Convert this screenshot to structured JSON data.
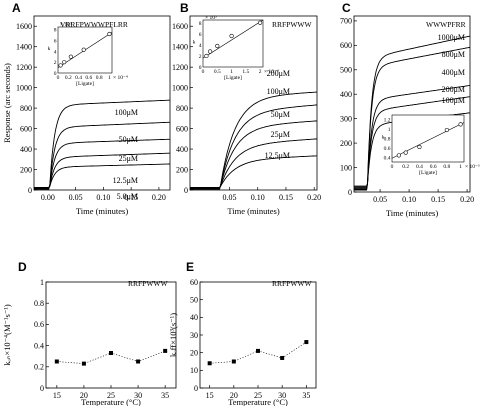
{
  "chart_data": [
    {
      "id": "A",
      "type": "line",
      "panel_label": "A",
      "sequence": "VRRFPWWWPFLRR",
      "ylabel": "Response (arc seconds)",
      "xlabel": "Time (minutes)",
      "xlim": [
        -0.025,
        0.22
      ],
      "ylim": [
        0,
        1700
      ],
      "xticks": [
        "0.00",
        "0.05",
        "0.10",
        "0.15",
        "0.20"
      ],
      "xtick_values": [
        0.0,
        0.05,
        0.1,
        0.15,
        0.2
      ],
      "yticks": [
        "0",
        "200",
        "400",
        "600",
        "800",
        "1000",
        "1200",
        "1400",
        "1600"
      ],
      "ytick_values": [
        0,
        200,
        400,
        600,
        800,
        1000,
        1200,
        1400,
        1600
      ],
      "inj_start": 0.003,
      "rise_tau": 0.009,
      "series": [
        {
          "name": "100μM",
          "plateau": 820,
          "final": 870
        },
        {
          "name": "50μM",
          "plateau": 600,
          "final": 650
        },
        {
          "name": "25μM",
          "plateau": 440,
          "final": 480
        },
        {
          "name": "12.5μM",
          "plateau": 300,
          "final": 340
        },
        {
          "name": "5.0μM",
          "plateau": 200,
          "final": 230
        }
      ],
      "inset": {
        "xlabel": "[Ligate]",
        "ylabel": "k",
        "x_exp": "× 10⁻⁴",
        "y_exp": "× 10³",
        "xticks": [
          "0",
          "0.2",
          "0.4",
          "0.6",
          "0.8",
          "1"
        ],
        "xtick_values": [
          0,
          0.2,
          0.4,
          0.6,
          0.8,
          1
        ],
        "yticks": [
          "0",
          "2",
          "4",
          "6",
          "8"
        ],
        "ytick_values": [
          0,
          2,
          4,
          6,
          8
        ],
        "xlim": [
          0,
          1.05
        ],
        "ylim": [
          0,
          8.5
        ],
        "points": [
          [
            0.05,
            1.4
          ],
          [
            0.12,
            2.0
          ],
          [
            0.25,
            3.0
          ],
          [
            0.5,
            4.3
          ],
          [
            1.0,
            7.2
          ]
        ],
        "fit": [
          [
            0,
            1.0
          ],
          [
            1.05,
            7.5
          ]
        ]
      }
    },
    {
      "id": "B",
      "type": "line",
      "panel_label": "B",
      "sequence": "RRFPWWW",
      "xlabel": "Time (minutes)",
      "xlim": [
        -0.02,
        0.205
      ],
      "ylim": [
        0,
        1700
      ],
      "xticks": [
        "0.05",
        "0.10",
        "0.15",
        "0.20"
      ],
      "xtick_values": [
        0.05,
        0.1,
        0.15,
        0.2
      ],
      "yticks": [
        "0",
        "200",
        "400",
        "600",
        "800",
        "1000",
        "1200",
        "1400",
        "1600"
      ],
      "ytick_values": [
        0,
        200,
        400,
        600,
        800,
        1000,
        1200,
        1400,
        1600
      ],
      "inj_start": 0.033,
      "rise_tau": 0.026,
      "series": [
        {
          "name": "200μM",
          "plateau": 900,
          "final": 950
        },
        {
          "name": "100μM",
          "plateau": 750,
          "final": 820
        },
        {
          "name": "50μM",
          "plateau": 600,
          "final": 660
        },
        {
          "name": "25μM",
          "plateau": 420,
          "final": 480
        },
        {
          "name": "12.5μM",
          "plateau": 270,
          "final": 310
        }
      ],
      "inset": {
        "xlabel": "[Ligate]",
        "ylabel": "k",
        "x_exp": "× 10⁻⁴",
        "y_exp": "× 10³",
        "xticks": [
          "0",
          "0.5",
          "1",
          "1.5",
          "2"
        ],
        "xtick_values": [
          0,
          0.5,
          1,
          1.5,
          2
        ],
        "yticks": [
          "0",
          "2",
          "4",
          "6",
          "8"
        ],
        "ytick_values": [
          0,
          2,
          4,
          6,
          8
        ],
        "xlim": [
          0,
          2.1
        ],
        "ylim": [
          0,
          8.5
        ],
        "points": [
          [
            0.12,
            2.0
          ],
          [
            0.25,
            2.8
          ],
          [
            0.5,
            3.8
          ],
          [
            1.0,
            5.6
          ],
          [
            2.0,
            8.0
          ]
        ],
        "fit": [
          [
            0,
            1.6
          ],
          [
            2.1,
            8.5
          ]
        ]
      }
    },
    {
      "id": "C",
      "type": "line",
      "panel_label": "C",
      "sequence": "WWWPFRR",
      "xlabel": "Time (minutes)",
      "xlim": [
        0.005,
        0.205
      ],
      "ylim": [
        0,
        720
      ],
      "xticks": [
        "0.05",
        "0.10",
        "0.15",
        "0.20"
      ],
      "xtick_values": [
        0.05,
        0.1,
        0.15,
        0.2
      ],
      "yticks": [
        "0",
        "100",
        "200",
        "300",
        "400",
        "500",
        "600",
        "700"
      ],
      "ytick_values": [
        0,
        100,
        200,
        300,
        400,
        500,
        600,
        700
      ],
      "inj_start": 0.028,
      "rise_tau": 0.007,
      "series": [
        {
          "name": "1000μM",
          "plateau": 540,
          "final": 630
        },
        {
          "name": "800μM",
          "plateau": 500,
          "final": 580
        },
        {
          "name": "400μM",
          "plateau": 360,
          "final": 420
        },
        {
          "name": "200μM",
          "plateau": 310,
          "final": 370
        },
        {
          "name": "100μM",
          "plateau": 250,
          "final": 300
        }
      ],
      "inset": {
        "xlabel": "[Ligate]",
        "ylabel": "k",
        "x_exp": "× 10⁻³",
        "y_exp": "",
        "xticks": [
          "0",
          "0.2",
          "0.4",
          "0.6",
          "0.8",
          "1"
        ],
        "xtick_values": [
          0,
          0.2,
          0.4,
          0.6,
          0.8,
          1
        ],
        "yticks": [
          "0.4",
          "0.6",
          "0.8",
          "1",
          "1.2"
        ],
        "ytick_values": [
          0.4,
          0.6,
          0.8,
          1.0,
          1.2
        ],
        "xlim": [
          0,
          1.05
        ],
        "ylim": [
          0.3,
          1.3
        ],
        "points": [
          [
            0.1,
            0.44
          ],
          [
            0.2,
            0.5
          ],
          [
            0.4,
            0.62
          ],
          [
            0.8,
            0.98
          ],
          [
            1.0,
            1.1
          ]
        ],
        "fit": [
          [
            0,
            0.38
          ],
          [
            1.05,
            1.14
          ]
        ]
      }
    },
    {
      "id": "D",
      "type": "line",
      "panel_label": "D",
      "sequence": "RRFPWWW",
      "ylabel": "kₒₙ×10⁻⁴(M⁻¹s⁻¹)",
      "xlabel": "Temperature (°C)",
      "x": [
        15,
        20,
        25,
        30,
        35
      ],
      "values": [
        0.25,
        0.23,
        0.33,
        0.25,
        0.35
      ],
      "xlim": [
        13,
        37
      ],
      "ylim": [
        0,
        1.0
      ],
      "xticks": [
        "15",
        "20",
        "25",
        "30",
        "35"
      ],
      "xtick_values": [
        15,
        20,
        25,
        30,
        35
      ],
      "yticks": [
        "0",
        "0.2",
        "0.4",
        "0.6",
        "0.8",
        "1"
      ],
      "ytick_values": [
        0,
        0.2,
        0.4,
        0.6,
        0.8,
        1.0
      ]
    },
    {
      "id": "E",
      "type": "line",
      "panel_label": "E",
      "sequence": "RRFPWWW",
      "ylabel": "kₒff×10³(s⁻¹)",
      "xlabel": "Temperature (°C)",
      "x": [
        15,
        20,
        25,
        30,
        35
      ],
      "values": [
        14,
        15,
        21,
        17,
        26
      ],
      "xlim": [
        13,
        37
      ],
      "ylim": [
        0,
        60
      ],
      "xticks": [
        "15",
        "20",
        "25",
        "30",
        "35"
      ],
      "xtick_values": [
        15,
        20,
        25,
        30,
        35
      ],
      "yticks": [
        "0",
        "10",
        "20",
        "30",
        "40",
        "50",
        "60"
      ],
      "ytick_values": [
        0,
        10,
        20,
        30,
        40,
        50,
        60
      ]
    }
  ]
}
